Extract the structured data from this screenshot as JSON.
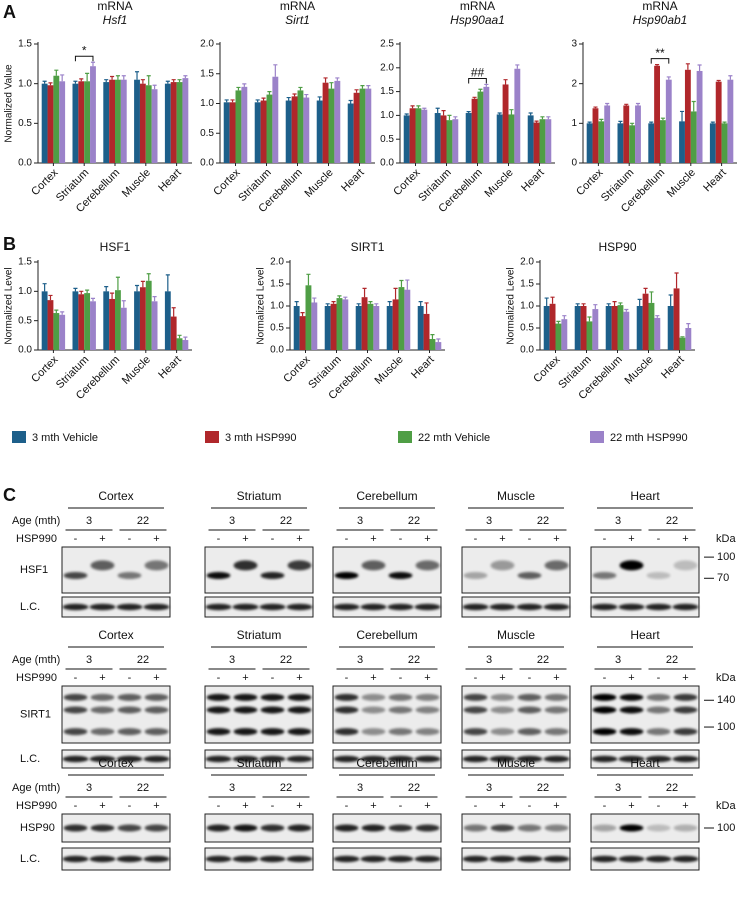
{
  "panels": [
    "A",
    "B",
    "C"
  ],
  "legend": [
    {
      "name": "3 mth Vehicle",
      "color": "#1d5f8a"
    },
    {
      "name": "3 mth HSP990",
      "color": "#b0272b"
    },
    {
      "name": "22 mth Vehicle",
      "color": "#4f9e45"
    },
    {
      "name": "22 mth HSP990",
      "color": "#9b82c9"
    }
  ],
  "chart_data": [
    {
      "type": "bar",
      "title": "mRNA",
      "subtitle": "Hsf1",
      "y_label": "Normalized Value",
      "categories": [
        "Cortex",
        "Striatum",
        "Cerebellum",
        "Muscle",
        "Heart"
      ],
      "series": [
        {
          "values": [
            1.0,
            1.0,
            1.02,
            1.05,
            1.0
          ],
          "errors": [
            0.03,
            0.03,
            0.03,
            0.1,
            0.03
          ]
        },
        {
          "values": [
            0.98,
            1.03,
            1.05,
            1.0,
            1.02
          ],
          "errors": [
            0.03,
            0.03,
            0.04,
            0.05,
            0.03
          ]
        },
        {
          "values": [
            1.1,
            1.03,
            1.05,
            0.98,
            1.02
          ],
          "errors": [
            0.07,
            0.1,
            0.05,
            0.12,
            0.03
          ]
        },
        {
          "values": [
            1.03,
            1.22,
            1.05,
            0.93,
            1.07
          ],
          "errors": [
            0.08,
            0.05,
            0.05,
            0.05,
            0.03
          ]
        }
      ],
      "ylim": [
        0,
        1.5
      ],
      "yticks": [
        {
          "value": 0,
          "label": "0.0"
        },
        0.5,
        {
          "value": 1,
          "label": "1.0"
        },
        1.5
      ],
      "annotations": [
        {
          "text": "*",
          "category": "Striatum"
        }
      ]
    },
    {
      "type": "bar",
      "title": "mRNA",
      "subtitle": "Sirt1",
      "categories": [
        "Cortex",
        "Striatum",
        "Cerebellum",
        "Muscle",
        "Heart"
      ],
      "series": [
        {
          "values": [
            1.02,
            1.02,
            1.05,
            1.05,
            1.0
          ],
          "errors": [
            0.04,
            0.04,
            0.05,
            0.06,
            0.05
          ]
        },
        {
          "values": [
            1.02,
            1.05,
            1.12,
            1.35,
            1.18
          ],
          "errors": [
            0.04,
            0.04,
            0.04,
            0.08,
            0.05
          ]
        },
        {
          "values": [
            1.22,
            1.15,
            1.22,
            1.25,
            1.25
          ],
          "errors": [
            0.05,
            0.05,
            0.05,
            0.1,
            0.05
          ]
        },
        {
          "values": [
            1.28,
            1.45,
            1.1,
            1.38,
            1.25
          ],
          "errors": [
            0.05,
            0.2,
            0.05,
            0.05,
            0.05
          ]
        }
      ],
      "ylim": [
        0,
        2
      ],
      "yticks": [
        {
          "value": 0,
          "label": "0.0"
        },
        0.5,
        {
          "value": 1,
          "label": "1.0"
        },
        1.5,
        {
          "value": 2,
          "label": "2.0"
        }
      ]
    },
    {
      "type": "bar",
      "title": "mRNA",
      "subtitle": "Hsp90aa1",
      "categories": [
        "Cortex",
        "Striatum",
        "Cerebellum",
        "Muscle",
        "Heart"
      ],
      "series": [
        {
          "values": [
            1.0,
            1.05,
            1.05,
            1.02,
            1.0
          ],
          "errors": [
            0.03,
            0.1,
            0.03,
            0.03,
            0.05
          ]
        },
        {
          "values": [
            1.15,
            1.0,
            1.35,
            1.65,
            0.85
          ],
          "errors": [
            0.05,
            0.1,
            0.03,
            0.1,
            0.03
          ]
        },
        {
          "values": [
            1.15,
            0.9,
            1.5,
            1.02,
            0.92
          ],
          "errors": [
            0.05,
            0.1,
            0.05,
            0.1,
            0.05
          ]
        },
        {
          "values": [
            1.12,
            0.92,
            1.6,
            1.98,
            0.92
          ],
          "errors": [
            0.03,
            0.05,
            0.05,
            0.08,
            0.05
          ]
        }
      ],
      "ylim": [
        0,
        2.5
      ],
      "yticks": [
        {
          "value": 0,
          "label": "0.0"
        },
        0.5,
        {
          "value": 1,
          "label": "1.0"
        },
        1.5,
        {
          "value": 2,
          "label": "2.0"
        },
        2.5
      ],
      "annotations": [
        {
          "text": "##",
          "category": "Cerebellum"
        }
      ]
    },
    {
      "type": "bar",
      "title": "mRNA",
      "subtitle": "Hsp90ab1",
      "categories": [
        "Cortex",
        "Striatum",
        "Cerebellum",
        "Muscle",
        "Heart"
      ],
      "series": [
        {
          "values": [
            1.0,
            1.0,
            1.0,
            1.05,
            1.0
          ],
          "errors": [
            0.03,
            0.05,
            0.03,
            0.25,
            0.03
          ]
        },
        {
          "values": [
            1.38,
            1.45,
            2.45,
            2.35,
            2.05
          ],
          "errors": [
            0.03,
            0.03,
            0.03,
            0.15,
            0.03
          ]
        },
        {
          "values": [
            1.05,
            0.95,
            1.08,
            1.3,
            1.0
          ],
          "errors": [
            0.05,
            0.05,
            0.05,
            0.25,
            0.03
          ]
        },
        {
          "values": [
            1.45,
            1.45,
            2.1,
            2.32,
            2.1
          ],
          "errors": [
            0.05,
            0.05,
            0.07,
            0.15,
            0.1
          ]
        }
      ],
      "ylim": [
        0,
        3
      ],
      "yticks": [
        0,
        1,
        2,
        3
      ],
      "annotations": [
        {
          "text": "**",
          "category": "Cerebellum"
        }
      ]
    },
    {
      "type": "bar",
      "title": "HSF1",
      "y_label": "Normalized Level",
      "categories": [
        "Cortex",
        "Striatum",
        "Cerebellum",
        "Muscle",
        "Heart"
      ],
      "series": [
        {
          "values": [
            1.0,
            1.0,
            1.0,
            1.0,
            1.0
          ],
          "errors": [
            0.13,
            0.05,
            0.08,
            0.1,
            0.28
          ]
        },
        {
          "values": [
            0.85,
            0.95,
            0.87,
            1.07,
            0.57
          ],
          "errors": [
            0.08,
            0.05,
            0.1,
            0.1,
            0.15
          ]
        },
        {
          "values": [
            0.63,
            0.97,
            1.02,
            1.18,
            0.2
          ],
          "errors": [
            0.05,
            0.05,
            0.22,
            0.12,
            0.05
          ]
        },
        {
          "values": [
            0.6,
            0.83,
            0.72,
            0.83,
            0.17
          ],
          "errors": [
            0.05,
            0.05,
            0.12,
            0.08,
            0.05
          ]
        }
      ],
      "ylim": [
        0,
        1.5
      ],
      "yticks": [
        {
          "value": 0,
          "label": "0.0"
        },
        0.5,
        {
          "value": 1,
          "label": "1.0"
        },
        1.5
      ]
    },
    {
      "type": "bar",
      "title": "SIRT1",
      "y_label": "Normalized Level",
      "categories": [
        "Cortex",
        "Striatum",
        "Cerebellum",
        "Muscle",
        "Heart"
      ],
      "series": [
        {
          "values": [
            1.0,
            1.0,
            1.0,
            1.0,
            1.0
          ],
          "errors": [
            0.1,
            0.05,
            0.05,
            0.1,
            0.1
          ]
        },
        {
          "values": [
            0.77,
            1.05,
            1.2,
            1.15,
            0.82
          ],
          "errors": [
            0.08,
            0.05,
            0.2,
            0.25,
            0.25
          ]
        },
        {
          "values": [
            1.47,
            1.18,
            1.05,
            1.43,
            0.25
          ],
          "errors": [
            0.25,
            0.05,
            0.05,
            0.15,
            0.1
          ]
        },
        {
          "values": [
            1.08,
            1.15,
            1.0,
            1.37,
            0.18
          ],
          "errors": [
            0.1,
            0.05,
            0.05,
            0.22,
            0.07
          ]
        }
      ],
      "ylim": [
        0,
        2
      ],
      "yticks": [
        {
          "value": 0,
          "label": "0.0"
        },
        0.5,
        {
          "value": 1,
          "label": "1.0"
        },
        1.5,
        {
          "value": 2,
          "label": "2.0"
        }
      ]
    },
    {
      "type": "bar",
      "title": "HSP90",
      "y_label": "Normalized Level",
      "categories": [
        "Cortex",
        "Striatum",
        "Cerebellum",
        "Muscle",
        "Heart"
      ],
      "series": [
        {
          "values": [
            1.0,
            1.0,
            1.0,
            1.0,
            1.0
          ],
          "errors": [
            0.18,
            0.05,
            0.05,
            0.15,
            0.25
          ]
        },
        {
          "values": [
            1.05,
            1.0,
            1.0,
            1.28,
            1.4
          ],
          "errors": [
            0.15,
            0.05,
            0.1,
            0.12,
            0.35
          ]
        },
        {
          "values": [
            0.6,
            0.65,
            1.02,
            1.07,
            0.28
          ],
          "errors": [
            0.05,
            0.1,
            0.05,
            0.25,
            0.02
          ]
        },
        {
          "values": [
            0.7,
            0.93,
            0.87,
            0.73,
            0.5
          ],
          "errors": [
            0.08,
            0.1,
            0.05,
            0.05,
            0.1
          ]
        }
      ],
      "ylim": [
        0,
        2
      ],
      "yticks": [
        {
          "value": 0,
          "label": "0.0"
        },
        0.5,
        {
          "value": 1,
          "label": "1.0"
        },
        1.5,
        {
          "value": 2,
          "label": "2.0"
        }
      ]
    }
  ],
  "blots": {
    "tissues": [
      "Cortex",
      "Striatum",
      "Cerebellum",
      "Muscle",
      "Heart"
    ],
    "age_label": "Age (mth)",
    "ages": [
      "3",
      "22"
    ],
    "treatment_label": "HSP990",
    "treatment": [
      "-",
      "+",
      "-",
      "+"
    ],
    "loading_label": "L.C.",
    "kda_label": "kDa",
    "groups": [
      {
        "protein": "HSF1",
        "markers": [
          100,
          70
        ]
      },
      {
        "protein": "SIRT1",
        "markers": [
          140,
          100
        ]
      },
      {
        "protein": "HSP90",
        "markers": [
          100
        ]
      }
    ]
  }
}
